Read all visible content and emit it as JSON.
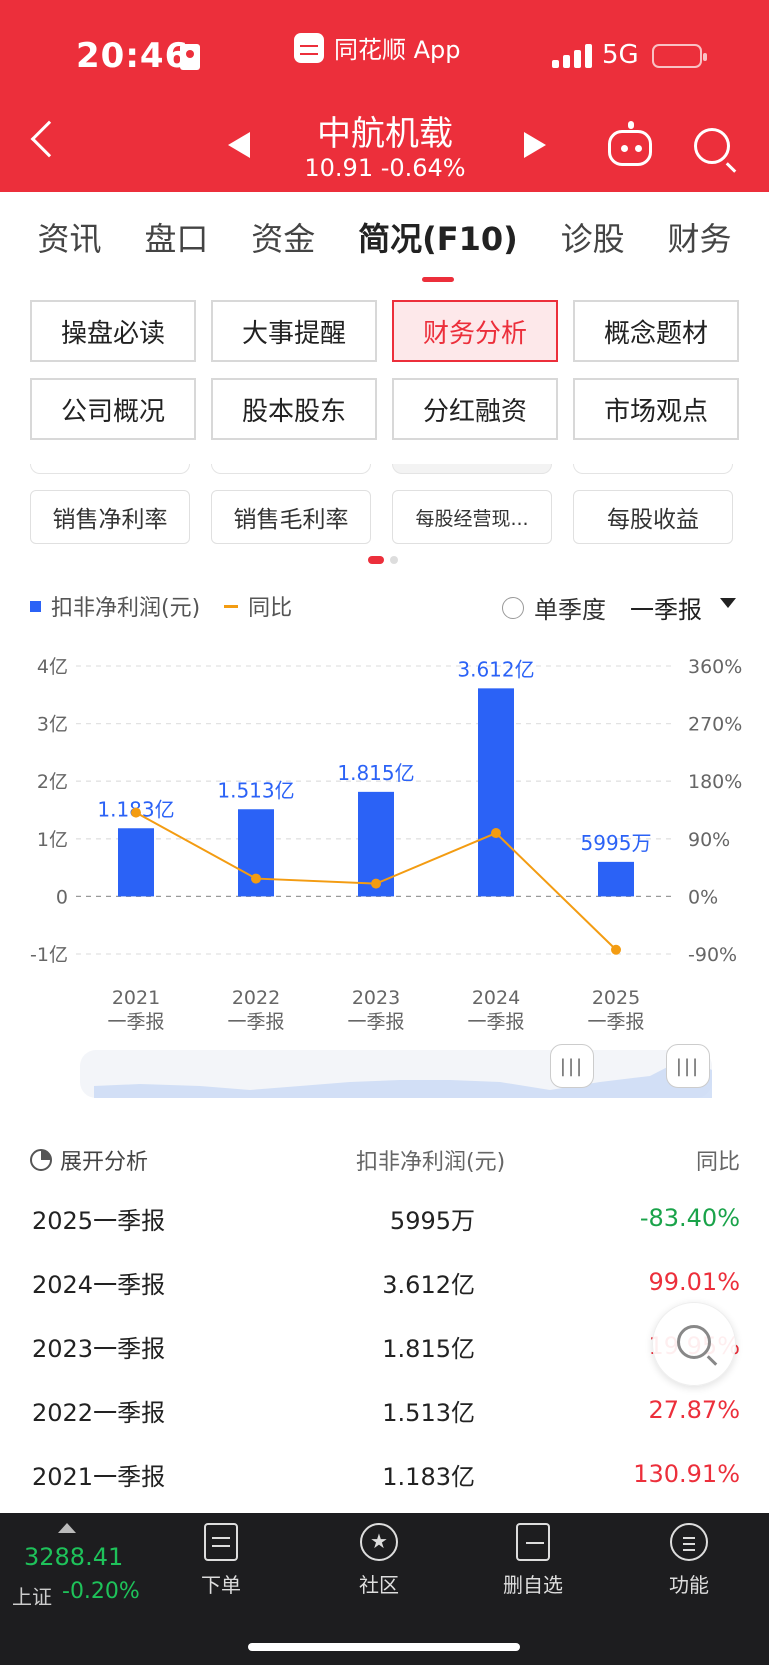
{
  "status_bar": {
    "time": "20:46",
    "app_name": "同花顺 App",
    "network": "5G"
  },
  "stock": {
    "name": "中航机载",
    "price_line": "10.91 -0.64%"
  },
  "tabs": [
    {
      "label": "资讯"
    },
    {
      "label": "盘口"
    },
    {
      "label": "资金"
    },
    {
      "label": "简况(F10)",
      "active": true
    },
    {
      "label": "诊股"
    },
    {
      "label": "财务"
    }
  ],
  "grid_buttons": [
    {
      "label": "操盘必读"
    },
    {
      "label": "大事提醒"
    },
    {
      "label": "财务分析",
      "active": true
    },
    {
      "label": "概念题材"
    },
    {
      "label": "公司概况"
    },
    {
      "label": "股本股东"
    },
    {
      "label": "分红融资"
    },
    {
      "label": "市场观点"
    }
  ],
  "metric_chips": [
    {
      "label": "销售净利率"
    },
    {
      "label": "销售毛利率"
    },
    {
      "label": "每股经营现..."
    },
    {
      "label": "每股收益"
    }
  ],
  "legend": {
    "bar_label": "扣非净利润(元)",
    "line_label": "同比",
    "season_label": "单季度",
    "report_select": "一季报"
  },
  "chart_data": {
    "type": "bar",
    "categories": [
      "2021\n一季报",
      "2022\n一季报",
      "2023\n一季报",
      "2024\n一季报",
      "2025\n一季报"
    ],
    "category_years": [
      "2021",
      "2022",
      "2023",
      "2024",
      "2025"
    ],
    "category_period": "一季报",
    "series": [
      {
        "name": "扣非净利润(元)",
        "values": [
          1.183,
          1.513,
          1.815,
          3.612,
          0.5995
        ],
        "unit": "亿",
        "labels": [
          "1.183亿",
          "1.513亿",
          "1.815亿",
          "3.612亿",
          "5995万"
        ],
        "color": "#2b62f6"
      },
      {
        "name": "同比",
        "type": "line",
        "values": [
          130.91,
          27.87,
          19.95,
          99.01,
          -83.4
        ],
        "unit": "%",
        "color": "#f39c12"
      }
    ],
    "y_left": {
      "ylim": [
        -1,
        4
      ],
      "ticks": [
        "-1亿",
        "0",
        "1亿",
        "2亿",
        "3亿",
        "4亿"
      ],
      "tick_values": [
        -1,
        0,
        1,
        2,
        3,
        4
      ]
    },
    "y_right": {
      "ylim": [
        -90,
        360
      ],
      "ticks": [
        "-90%",
        "0%",
        "90%",
        "180%",
        "270%",
        "360%"
      ],
      "tick_values": [
        -90,
        0,
        90,
        180,
        270,
        360
      ]
    },
    "grid": true
  },
  "table": {
    "header": {
      "expand_label": "展开分析",
      "profit_label": "扣非净利润(元)",
      "yoy_label": "同比"
    },
    "rows": [
      {
        "period": "2025一季报",
        "profit": "5995万",
        "yoy": "-83.40%",
        "direction": "down"
      },
      {
        "period": "2024一季报",
        "profit": "3.612亿",
        "yoy": "99.01%",
        "direction": "up"
      },
      {
        "period": "2023一季报",
        "profit": "1.815亿",
        "yoy": "19.95%",
        "direction": "up"
      },
      {
        "period": "2022一季报",
        "profit": "1.513亿",
        "yoy": "27.87%",
        "direction": "up"
      },
      {
        "period": "2021一季报",
        "profit": "1.183亿",
        "yoy": "130.91%",
        "direction": "up"
      }
    ]
  },
  "bottom_bar": {
    "index_value": "3288.41",
    "index_name": "上证",
    "index_change": "-0.20%",
    "nav": [
      {
        "label": "下单",
        "icon": "order-icon"
      },
      {
        "label": "社区",
        "icon": "community-icon"
      },
      {
        "label": "删自选",
        "icon": "remove-watchlist-icon"
      },
      {
        "label": "功能",
        "icon": "menu-icon"
      }
    ]
  }
}
